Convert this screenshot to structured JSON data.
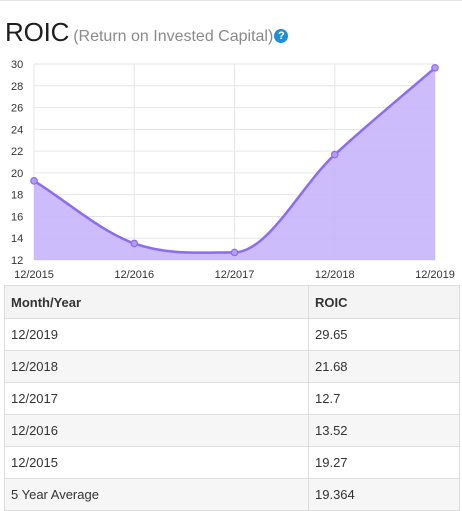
{
  "header": {
    "title": "ROIC",
    "subtitle": "(Return on Invested Capital)",
    "help_icon": "question-circle-icon",
    "help_glyph": "?"
  },
  "chart_data": {
    "type": "area",
    "x": [
      "12/2015",
      "12/2016",
      "12/2017",
      "12/2018",
      "12/2019"
    ],
    "values": [
      19.27,
      13.52,
      12.7,
      21.68,
      29.65
    ],
    "yticks": [
      12,
      14,
      16,
      18,
      20,
      22,
      24,
      26,
      28,
      30
    ],
    "ylim": [
      12,
      30
    ],
    "grid": true,
    "smooth": true,
    "colors": {
      "line": "#8c6cf0",
      "fill": "#c7b5fb",
      "point": "#b69cfa",
      "grid": "#e6e6e6"
    }
  },
  "table": {
    "headers": [
      "Month/Year",
      "ROIC"
    ],
    "rows": [
      [
        "12/2019",
        "29.65"
      ],
      [
        "12/2018",
        "21.68"
      ],
      [
        "12/2017",
        "12.7"
      ],
      [
        "12/2016",
        "13.52"
      ],
      [
        "12/2015",
        "19.27"
      ],
      [
        "5 Year Average",
        "19.364"
      ]
    ]
  }
}
